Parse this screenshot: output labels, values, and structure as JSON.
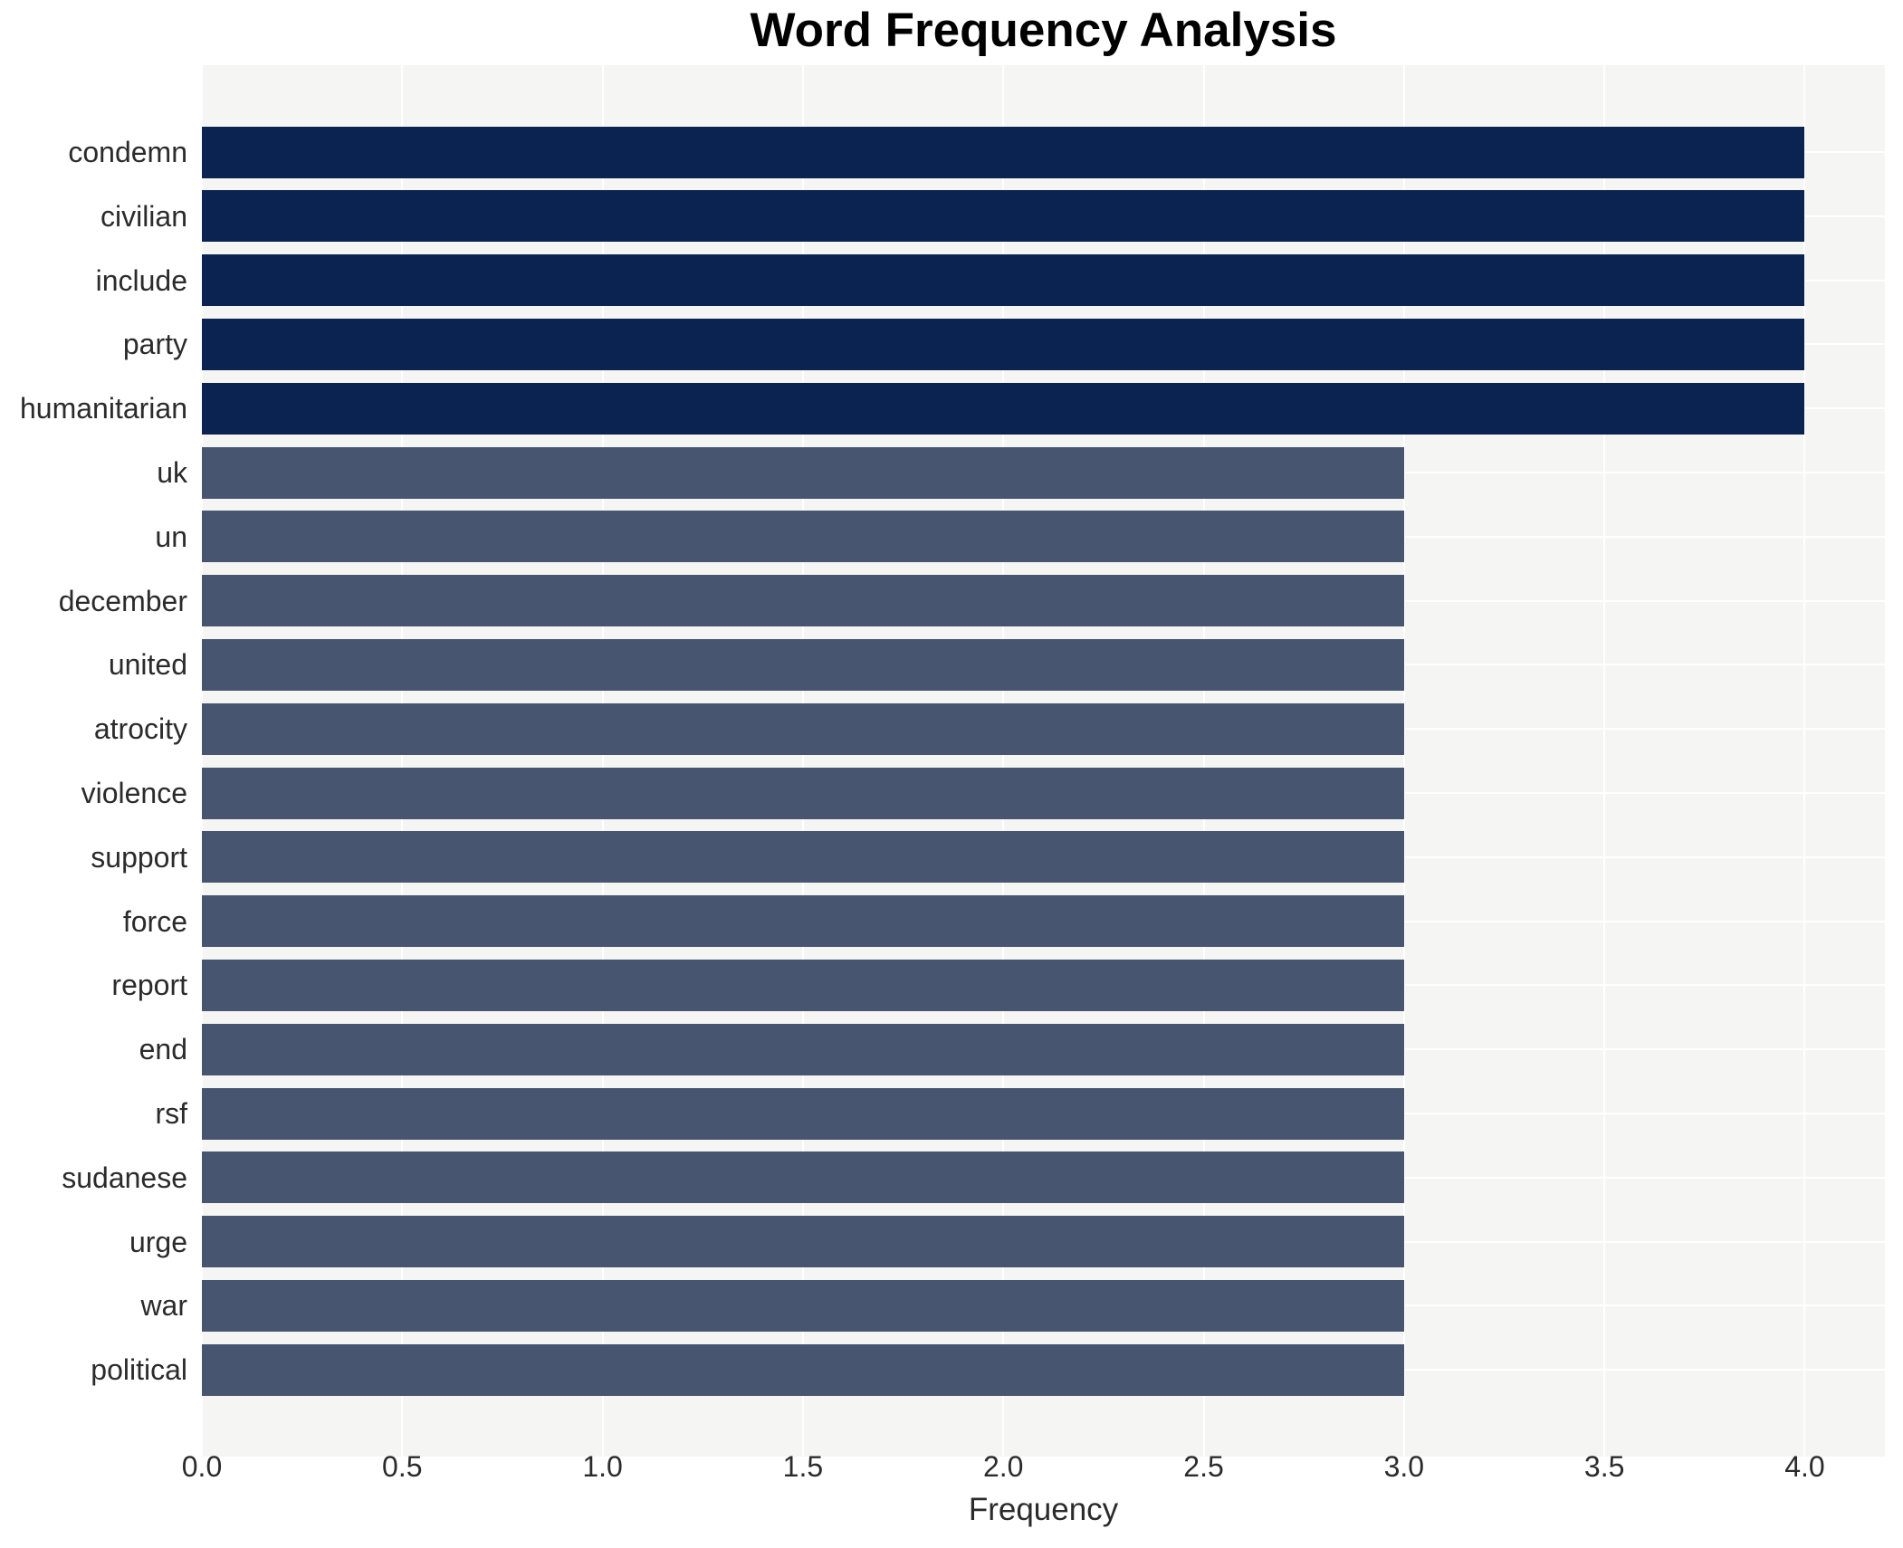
{
  "chart_data": {
    "type": "bar",
    "orientation": "horizontal",
    "title": "Word Frequency Analysis",
    "xlabel": "Frequency",
    "ylabel": "",
    "categories": [
      "condemn",
      "civilian",
      "include",
      "party",
      "humanitarian",
      "uk",
      "un",
      "december",
      "united",
      "atrocity",
      "violence",
      "support",
      "force",
      "report",
      "end",
      "rsf",
      "sudanese",
      "urge",
      "war",
      "political"
    ],
    "values": [
      4,
      4,
      4,
      4,
      4,
      3,
      3,
      3,
      3,
      3,
      3,
      3,
      3,
      3,
      3,
      3,
      3,
      3,
      3,
      3
    ],
    "bar_colors": [
      "#0a2350",
      "#0a2350",
      "#0a2350",
      "#0a2350",
      "#0a2350",
      "#475570",
      "#475570",
      "#475570",
      "#475570",
      "#475570",
      "#475570",
      "#475570",
      "#475570",
      "#475570",
      "#475570",
      "#475570",
      "#475570",
      "#475570",
      "#475570",
      "#475570"
    ],
    "xlim": [
      0,
      4.2
    ],
    "xticks": [
      0,
      0.5,
      1,
      1.5,
      2,
      2.5,
      3,
      3.5,
      4
    ],
    "xtick_labels": [
      "0.0",
      "0.5",
      "1.0",
      "1.5",
      "2.0",
      "2.5",
      "3.0",
      "3.5",
      "4.0"
    ],
    "grid": true,
    "legend": false
  },
  "style": {
    "plot_bg": "#f5f5f3",
    "grid_color": "#ffffff",
    "text_color": "#2b2b2b",
    "title_color": "#000000",
    "color_freq_4": "#0a2350",
    "color_freq_3": "#475570"
  }
}
